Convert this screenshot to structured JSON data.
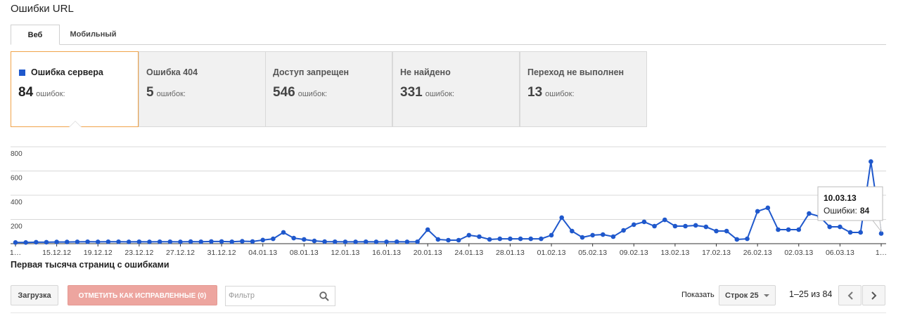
{
  "header": {
    "title": "Ошибки URL"
  },
  "tabs": [
    {
      "label": "Веб",
      "active": true
    },
    {
      "label": "Мобильный",
      "active": false
    }
  ],
  "cards": [
    {
      "label": "Ошибка сервера",
      "count": 84,
      "unit": "ошибок:",
      "selected": true,
      "color": "#1f58cc"
    },
    {
      "label": "Ошибка 404",
      "count": 5,
      "unit": "ошибок:",
      "selected": false
    },
    {
      "label": "Доступ запрещен",
      "count": 546,
      "unit": "ошибок:",
      "selected": false
    },
    {
      "label": "Не найдено",
      "count": 331,
      "unit": "ошибок:",
      "selected": false
    },
    {
      "label": "Переход не выполнен",
      "count": 13,
      "unit": "ошибок:",
      "selected": false
    }
  ],
  "chart_data": {
    "type": "line",
    "color": "#1f58cc",
    "ylim": [
      0,
      800
    ],
    "yticks": [
      200,
      400,
      600,
      800
    ],
    "grid": true,
    "categories": [
      "1…",
      null,
      null,
      null,
      "15.12.12",
      null,
      null,
      null,
      "19.12.12",
      null,
      null,
      null,
      "23.12.12",
      null,
      null,
      null,
      "27.12.12",
      null,
      null,
      null,
      "31.12.12",
      null,
      null,
      null,
      "04.01.13",
      null,
      null,
      null,
      "08.01.13",
      null,
      null,
      null,
      "12.01.13",
      null,
      null,
      null,
      "16.01.13",
      null,
      null,
      null,
      "20.01.13",
      null,
      null,
      null,
      "24.01.13",
      null,
      null,
      null,
      "28.01.13",
      null,
      null,
      null,
      "01.02.13",
      null,
      null,
      null,
      "05.02.13",
      null,
      null,
      null,
      "09.02.13",
      null,
      null,
      null,
      "13.02.13",
      null,
      null,
      null,
      "17.02.13",
      null,
      null,
      null,
      "26.02.13",
      null,
      null,
      null,
      "02.03.13",
      null,
      null,
      null,
      "06.03.13",
      null,
      null,
      null,
      "1…"
    ],
    "values": [
      10,
      10,
      12,
      12,
      14,
      14,
      15,
      16,
      15,
      16,
      16,
      15,
      16,
      15,
      16,
      16,
      15,
      17,
      16,
      18,
      18,
      16,
      20,
      18,
      30,
      40,
      93,
      46,
      35,
      23,
      17,
      16,
      15,
      15,
      16,
      15,
      15,
      16,
      15,
      16,
      116,
      35,
      29,
      29,
      70,
      58,
      35,
      40,
      40,
      40,
      40,
      40,
      70,
      215,
      104,
      52,
      70,
      75,
      58,
      110,
      157,
      180,
      145,
      197,
      145,
      145,
      151,
      139,
      104,
      104,
      35,
      40,
      267,
      296,
      116,
      116,
      116,
      249,
      226,
      139,
      139,
      93,
      93,
      678,
      84
    ],
    "tooltip": {
      "date": "10.03.13",
      "label": "Ошибки:"
    }
  },
  "section": {
    "title": "Первая тысяча страниц с ошибками"
  },
  "toolbar": {
    "download": "Загрузка",
    "mark_fixed": "ОТМЕТИТЬ КАК ИСПРАВЛЕННЫЕ (0)",
    "filter_placeholder": "Фильтр",
    "show": "Показать",
    "rows": "Строк 25",
    "range": "1–25 из 84"
  }
}
